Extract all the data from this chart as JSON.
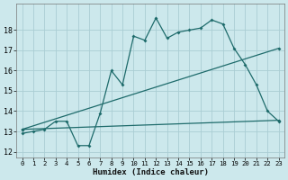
{
  "xlabel": "Humidex (Indice chaleur)",
  "bg_color": "#cce8ec",
  "grid_color": "#aacdd4",
  "line_color": "#1e6b6b",
  "x_ticks": [
    0,
    1,
    2,
    3,
    4,
    5,
    6,
    7,
    8,
    9,
    10,
    11,
    12,
    13,
    14,
    15,
    16,
    17,
    18,
    19,
    20,
    21,
    22,
    23
  ],
  "y_ticks": [
    12,
    13,
    14,
    15,
    16,
    17,
    18
  ],
  "ylim": [
    11.7,
    19.3
  ],
  "xlim": [
    -0.5,
    23.5
  ],
  "series1_x": [
    0,
    1,
    2,
    3,
    4,
    5,
    6,
    7,
    8,
    9,
    10,
    11,
    12,
    13,
    14,
    15,
    16,
    17,
    18,
    19,
    20,
    21,
    22,
    23
  ],
  "series1_y": [
    12.9,
    13.0,
    13.1,
    13.5,
    13.5,
    12.3,
    12.3,
    13.9,
    16.0,
    15.3,
    17.7,
    17.5,
    18.6,
    17.6,
    17.9,
    18.0,
    18.1,
    18.5,
    18.3,
    17.1,
    16.3,
    15.3,
    14.0,
    13.5
  ],
  "series2_x": [
    0,
    23
  ],
  "series2_y": [
    13.1,
    17.1
  ],
  "series3_x": [
    0,
    23
  ],
  "series3_y": [
    13.1,
    13.55
  ]
}
